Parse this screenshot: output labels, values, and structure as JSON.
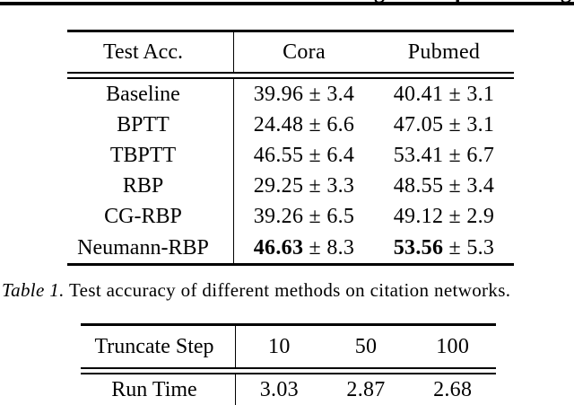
{
  "page": {
    "background": "#ffffff",
    "text_color": "#000000",
    "rule_color": "#000000",
    "header_fragments": [
      "g",
      "p",
      "g"
    ]
  },
  "table1": {
    "header_left": "Test Acc.",
    "columns": [
      "Cora",
      "Pubmed"
    ],
    "pm_symbol": "±",
    "rows": [
      {
        "method": "Baseline",
        "values": [
          {
            "mean": "39.96",
            "std": "3.4",
            "bold": false
          },
          {
            "mean": "40.41",
            "std": "3.1",
            "bold": false
          }
        ]
      },
      {
        "method": "BPTT",
        "values": [
          {
            "mean": "24.48",
            "std": "6.6",
            "bold": false
          },
          {
            "mean": "47.05",
            "std": "3.1",
            "bold": false
          }
        ]
      },
      {
        "method": "TBPTT",
        "values": [
          {
            "mean": "46.55",
            "std": "6.4",
            "bold": false
          },
          {
            "mean": "53.41",
            "std": "6.7",
            "bold": false
          }
        ]
      },
      {
        "method": "RBP",
        "values": [
          {
            "mean": "29.25",
            "std": "3.3",
            "bold": false
          },
          {
            "mean": "48.55",
            "std": "3.4",
            "bold": false
          }
        ]
      },
      {
        "method": "CG-RBP",
        "values": [
          {
            "mean": "39.26",
            "std": "6.5",
            "bold": false
          },
          {
            "mean": "49.12",
            "std": "2.9",
            "bold": false
          }
        ]
      },
      {
        "method": "Neumann-RBP",
        "values": [
          {
            "mean": "46.63",
            "std": "8.3",
            "bold": true
          },
          {
            "mean": "53.56",
            "std": "5.3",
            "bold": true
          }
        ]
      }
    ]
  },
  "caption": {
    "label": "Table 1.",
    "text": " Test accuracy of different methods on citation networks."
  },
  "table2": {
    "header_left": "Truncate Step",
    "columns": [
      "10",
      "50",
      "100"
    ],
    "rows": [
      {
        "method": "Run Time",
        "values": [
          "3.03",
          "2.87",
          "2.68"
        ]
      }
    ]
  }
}
